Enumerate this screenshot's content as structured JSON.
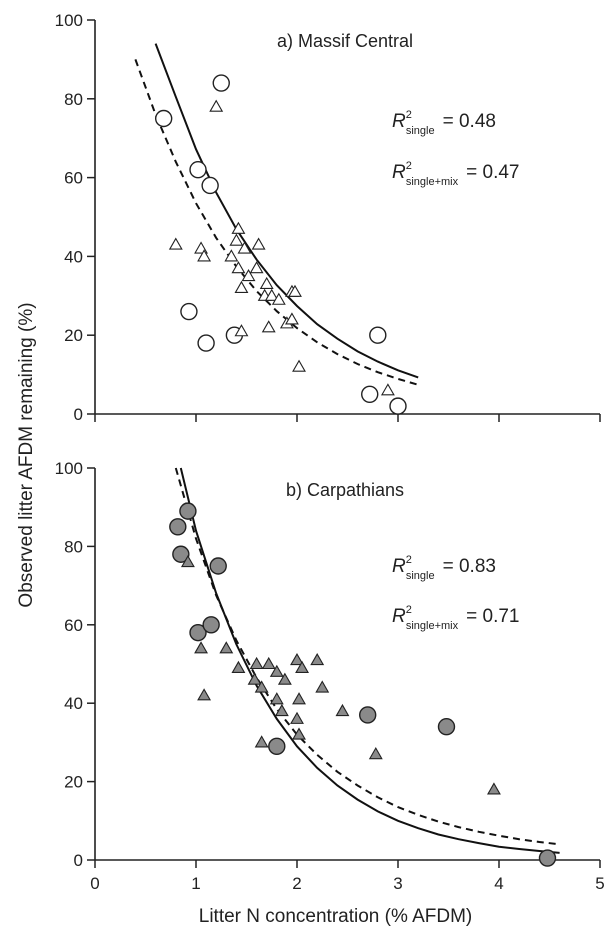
{
  "chart_data": [
    {
      "type": "scatter",
      "title": "a) Massif Central",
      "xlim": [
        0,
        5
      ],
      "ylim": [
        0,
        100
      ],
      "xticks": [
        "0",
        "1",
        "2",
        "3",
        "4",
        "5"
      ],
      "yticks": [
        "0",
        "20",
        "40",
        "60",
        "80",
        "100"
      ],
      "tick_labels_shown": {
        "x": false,
        "y": true
      },
      "stats": [
        {
          "label": "R",
          "sup": "2",
          "sub": "single",
          "value": "= 0.48"
        },
        {
          "label": "R",
          "sup": "2",
          "sub": "single+mix",
          "value": "= 0.47"
        }
      ],
      "series": [
        {
          "marker": "circle-open",
          "points": [
            [
              0.68,
              75
            ],
            [
              1.25,
              84
            ],
            [
              1.02,
              62
            ],
            [
              1.14,
              58
            ],
            [
              0.93,
              26
            ],
            [
              1.1,
              18
            ],
            [
              1.38,
              20
            ],
            [
              2.8,
              20
            ],
            [
              2.72,
              5
            ],
            [
              3.0,
              2
            ]
          ]
        },
        {
          "marker": "triangle-open",
          "points": [
            [
              1.2,
              78
            ],
            [
              0.8,
              43
            ],
            [
              1.05,
              42
            ],
            [
              1.08,
              40
            ],
            [
              1.42,
              47
            ],
            [
              1.4,
              44
            ],
            [
              1.48,
              42
            ],
            [
              1.62,
              43
            ],
            [
              1.35,
              40
            ],
            [
              1.42,
              37
            ],
            [
              1.52,
              35
            ],
            [
              1.6,
              37
            ],
            [
              1.7,
              33
            ],
            [
              1.45,
              32
            ],
            [
              1.68,
              30
            ],
            [
              1.75,
              30
            ],
            [
              1.82,
              29
            ],
            [
              1.95,
              31
            ],
            [
              1.98,
              31
            ],
            [
              1.9,
              23
            ],
            [
              1.95,
              24
            ],
            [
              1.72,
              22
            ],
            [
              1.45,
              21
            ],
            [
              2.02,
              12
            ],
            [
              2.9,
              6
            ]
          ]
        }
      ],
      "curves": [
        {
          "style": "solid",
          "points": [
            [
              0.6,
              94
            ],
            [
              0.8,
              80.5
            ],
            [
              1.0,
              67.2
            ],
            [
              1.2,
              56.2
            ],
            [
              1.4,
              46.9
            ],
            [
              1.6,
              39.2
            ],
            [
              1.8,
              32.7
            ],
            [
              2.0,
              27.4
            ],
            [
              2.2,
              22.8
            ],
            [
              2.4,
              19.1
            ],
            [
              2.6,
              15.9
            ],
            [
              2.8,
              13.3
            ],
            [
              3.0,
              11.1
            ],
            [
              3.2,
              9.3
            ]
          ]
        },
        {
          "style": "dashed",
          "points": [
            [
              0.4,
              90
            ],
            [
              0.6,
              76
            ],
            [
              0.8,
              64
            ],
            [
              1.0,
              53.5
            ],
            [
              1.2,
              44.7
            ],
            [
              1.4,
              37.4
            ],
            [
              1.6,
              31.2
            ],
            [
              1.8,
              26.1
            ],
            [
              2.0,
              21.8
            ],
            [
              2.2,
              18.2
            ],
            [
              2.4,
              15.2
            ],
            [
              2.6,
              12.7
            ],
            [
              2.8,
              10.6
            ],
            [
              3.0,
              8.9
            ],
            [
              3.2,
              7.4
            ]
          ]
        }
      ]
    },
    {
      "type": "scatter",
      "title": "b) Carpathians",
      "xlim": [
        0,
        5
      ],
      "ylim": [
        0,
        100
      ],
      "xticks": [
        "0",
        "1",
        "2",
        "3",
        "4",
        "5"
      ],
      "yticks": [
        "0",
        "20",
        "40",
        "60",
        "80",
        "100"
      ],
      "tick_labels_shown": {
        "x": true,
        "y": true
      },
      "xlabel": "Litter N concentration (% AFDM)",
      "stats": [
        {
          "label": "R",
          "sup": "2",
          "sub": "single",
          "value": "= 0.83"
        },
        {
          "label": "R",
          "sup": "2",
          "sub": "single+mix",
          "value": "= 0.71"
        }
      ],
      "series": [
        {
          "marker": "circle-filled",
          "points": [
            [
              0.82,
              85
            ],
            [
              0.92,
              89
            ],
            [
              0.85,
              78
            ],
            [
              1.22,
              75
            ],
            [
              1.02,
              58
            ],
            [
              1.15,
              60
            ],
            [
              1.8,
              29
            ],
            [
              2.7,
              37
            ],
            [
              3.48,
              34
            ],
            [
              4.48,
              0.5
            ]
          ]
        },
        {
          "marker": "triangle-filled",
          "points": [
            [
              0.92,
              76
            ],
            [
              1.05,
              54
            ],
            [
              1.08,
              42
            ],
            [
              1.3,
              54
            ],
            [
              1.42,
              49
            ],
            [
              1.6,
              50
            ],
            [
              1.58,
              46
            ],
            [
              1.65,
              44
            ],
            [
              1.72,
              50
            ],
            [
              1.8,
              48
            ],
            [
              1.88,
              46
            ],
            [
              2.0,
              51
            ],
            [
              2.05,
              49
            ],
            [
              2.2,
              51
            ],
            [
              2.25,
              44
            ],
            [
              1.8,
              41
            ],
            [
              1.85,
              38
            ],
            [
              2.02,
              41
            ],
            [
              2.0,
              36
            ],
            [
              2.02,
              32
            ],
            [
              2.45,
              38
            ],
            [
              2.78,
              27
            ],
            [
              1.65,
              30
            ],
            [
              3.95,
              18
            ]
          ]
        }
      ],
      "curves": [
        {
          "style": "solid",
          "points": [
            [
              0.85,
              100
            ],
            [
              1.0,
              84
            ],
            [
              1.2,
              68
            ],
            [
              1.4,
              55
            ],
            [
              1.6,
              44.5
            ],
            [
              1.8,
              36
            ],
            [
              2.0,
              29
            ],
            [
              2.2,
              23.5
            ],
            [
              2.4,
              19
            ],
            [
              2.6,
              15.4
            ],
            [
              2.8,
              12.4
            ],
            [
              3.0,
              10
            ],
            [
              3.2,
              8.1
            ],
            [
              3.4,
              6.5
            ],
            [
              3.6,
              5.3
            ],
            [
              3.8,
              4.3
            ],
            [
              4.0,
              3.4
            ],
            [
              4.2,
              2.8
            ],
            [
              4.4,
              2.3
            ],
            [
              4.6,
              1.8
            ]
          ]
        },
        {
          "style": "dashed",
          "points": [
            [
              0.8,
              100
            ],
            [
              1.0,
              82
            ],
            [
              1.2,
              67.5
            ],
            [
              1.4,
              56
            ],
            [
              1.6,
              46.5
            ],
            [
              1.8,
              38.5
            ],
            [
              2.0,
              32
            ],
            [
              2.2,
              26.8
            ],
            [
              2.4,
              22.5
            ],
            [
              2.6,
              19
            ],
            [
              2.8,
              16
            ],
            [
              3.0,
              13.5
            ],
            [
              3.2,
              11.5
            ],
            [
              3.4,
              9.8
            ],
            [
              3.6,
              8.4
            ],
            [
              3.8,
              7.2
            ],
            [
              4.0,
              6.2
            ],
            [
              4.2,
              5.3
            ],
            [
              4.4,
              4.6
            ],
            [
              4.6,
              4
            ]
          ]
        }
      ]
    }
  ],
  "shared_ylabel": "Observed litter AFDM remaining (%)"
}
